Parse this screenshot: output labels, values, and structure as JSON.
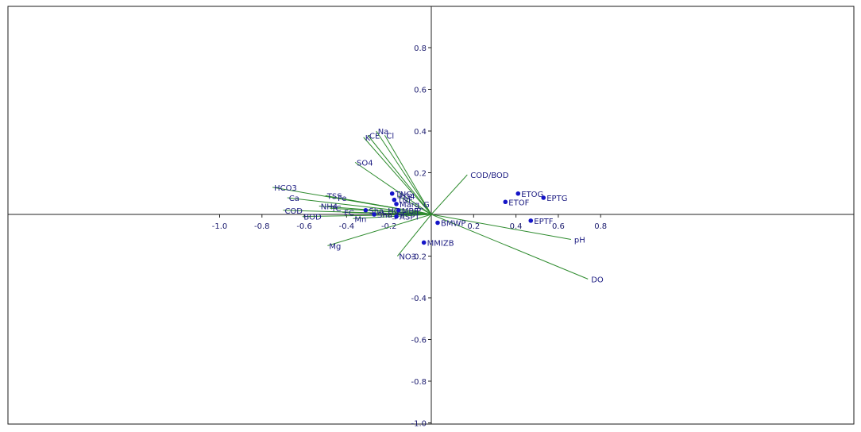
{
  "chart_data": {
    "type": "scatter",
    "subtype": "biplot",
    "title": "",
    "xlabel": "",
    "ylabel": "",
    "xlim": [
      -1.0,
      1.0
    ],
    "ylim": [
      -1.0,
      1.0
    ],
    "grid": false,
    "legend": "none",
    "colors": {
      "vector": "#2e8b2e",
      "point": "#1515c8",
      "label": "#1a1a80",
      "axis": "#222222"
    },
    "x_ticks": [
      {
        "value": -1.0,
        "label": "-1.0"
      },
      {
        "value": -0.8,
        "label": "-0.8"
      },
      {
        "value": -0.6,
        "label": "-0.6"
      },
      {
        "value": -0.4,
        "label": "-0.4"
      },
      {
        "value": -0.2,
        "label": "-0.2"
      },
      {
        "value": 0.2,
        "label": "0.2"
      },
      {
        "value": 0.4,
        "label": "0.4"
      },
      {
        "value": 0.6,
        "label": "0.6"
      },
      {
        "value": 0.8,
        "label": "0.8"
      }
    ],
    "y_ticks": [
      {
        "value": 0.8,
        "label": "0.8"
      },
      {
        "value": 0.6,
        "label": "0.6"
      },
      {
        "value": 0.4,
        "label": "0.4"
      },
      {
        "value": 0.2,
        "label": "0.2"
      },
      {
        "value": -0.2,
        "label": "-0.2"
      },
      {
        "value": -0.4,
        "label": "-0.4"
      },
      {
        "value": -0.6,
        "label": "-0.6"
      },
      {
        "value": -0.8,
        "label": "-0.8"
      },
      {
        "value": -1.0,
        "label": "-1.0"
      }
    ],
    "vectors": [
      {
        "label": "HCO3",
        "x": -0.75,
        "y": 0.13
      },
      {
        "label": "Ca",
        "x": -0.68,
        "y": 0.08
      },
      {
        "label": "COD",
        "x": -0.7,
        "y": 0.02
      },
      {
        "label": "BOD",
        "x": -0.61,
        "y": -0.01
      },
      {
        "label": "TSS",
        "x": -0.5,
        "y": 0.09
      },
      {
        "label": "Fe",
        "x": -0.45,
        "y": 0.08
      },
      {
        "label": "NH4",
        "x": -0.53,
        "y": 0.04
      },
      {
        "label": "TC",
        "x": -0.48,
        "y": 0.03
      },
      {
        "label": "FC",
        "x": -0.42,
        "y": 0.01
      },
      {
        "label": "Mn",
        "x": -0.37,
        "y": -0.02
      },
      {
        "label": "Mg",
        "x": -0.49,
        "y": -0.15
      },
      {
        "label": "SO4",
        "x": -0.36,
        "y": 0.25
      },
      {
        "label": "K",
        "x": -0.32,
        "y": 0.37
      },
      {
        "label": "CE",
        "x": -0.3,
        "y": 0.38
      },
      {
        "label": "Na",
        "x": -0.26,
        "y": 0.4
      },
      {
        "label": "Cl",
        "x": -0.22,
        "y": 0.38
      },
      {
        "label": "PO4",
        "x": -0.16,
        "y": 0.09
      },
      {
        "label": "NO3",
        "x": -0.16,
        "y": -0.2
      },
      {
        "label": "COD/BOD",
        "x": 0.17,
        "y": 0.19
      },
      {
        "label": "pH",
        "x": 0.66,
        "y": -0.12
      },
      {
        "label": "DO",
        "x": 0.74,
        "y": -0.31
      },
      {
        "label": "F",
        "x": -0.09,
        "y": 0.02
      }
    ],
    "points": [
      {
        "label": "TNG",
        "x": -0.185,
        "y": 0.1
      },
      {
        "label": "TNF",
        "x": -0.175,
        "y": 0.07
      },
      {
        "label": "Marg_G",
        "x": -0.165,
        "y": 0.05
      },
      {
        "label": "Sha_HG",
        "x": -0.31,
        "y": 0.02
      },
      {
        "label": "Sha_HF",
        "x": -0.27,
        "y": 0.0
      },
      {
        "label": "MBIP",
        "x": -0.155,
        "y": 0.02
      },
      {
        "label": "ASPT",
        "x": -0.165,
        "y": -0.01
      },
      {
        "label": "BMWP",
        "x": 0.03,
        "y": -0.04
      },
      {
        "label": "MMIZB",
        "x": -0.035,
        "y": -0.135
      },
      {
        "label": "ETOF",
        "x": 0.35,
        "y": 0.06
      },
      {
        "label": "ETOG",
        "x": 0.41,
        "y": 0.1
      },
      {
        "label": "EPTG",
        "x": 0.53,
        "y": 0.08
      },
      {
        "label": "EPTF",
        "x": 0.47,
        "y": -0.03
      }
    ]
  }
}
